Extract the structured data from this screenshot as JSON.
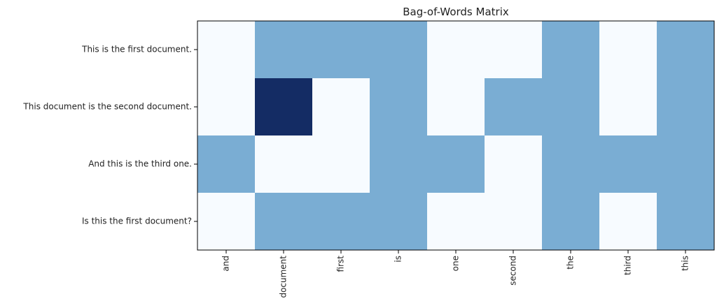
{
  "chart_data": {
    "type": "heatmap",
    "title": "Bag-of-Words Matrix",
    "xlabel": "",
    "ylabel": "",
    "x_categories": [
      "and",
      "document",
      "first",
      "is",
      "one",
      "second",
      "the",
      "third",
      "this"
    ],
    "y_categories": [
      "This is the first document.",
      "This document is the second document.",
      "And this is the third one.",
      "Is this the first document?"
    ],
    "values": [
      [
        0,
        1,
        1,
        1,
        0,
        0,
        1,
        0,
        1
      ],
      [
        0,
        2,
        0,
        1,
        0,
        1,
        1,
        0,
        1
      ],
      [
        1,
        0,
        0,
        1,
        1,
        0,
        1,
        1,
        1
      ],
      [
        0,
        1,
        1,
        1,
        0,
        0,
        1,
        0,
        1
      ]
    ],
    "colormap": "Blues",
    "value_colors": {
      "0": "#f7fbff",
      "1": "#7aadd3",
      "2": "#142c64"
    },
    "grid": false,
    "legend": "none"
  }
}
